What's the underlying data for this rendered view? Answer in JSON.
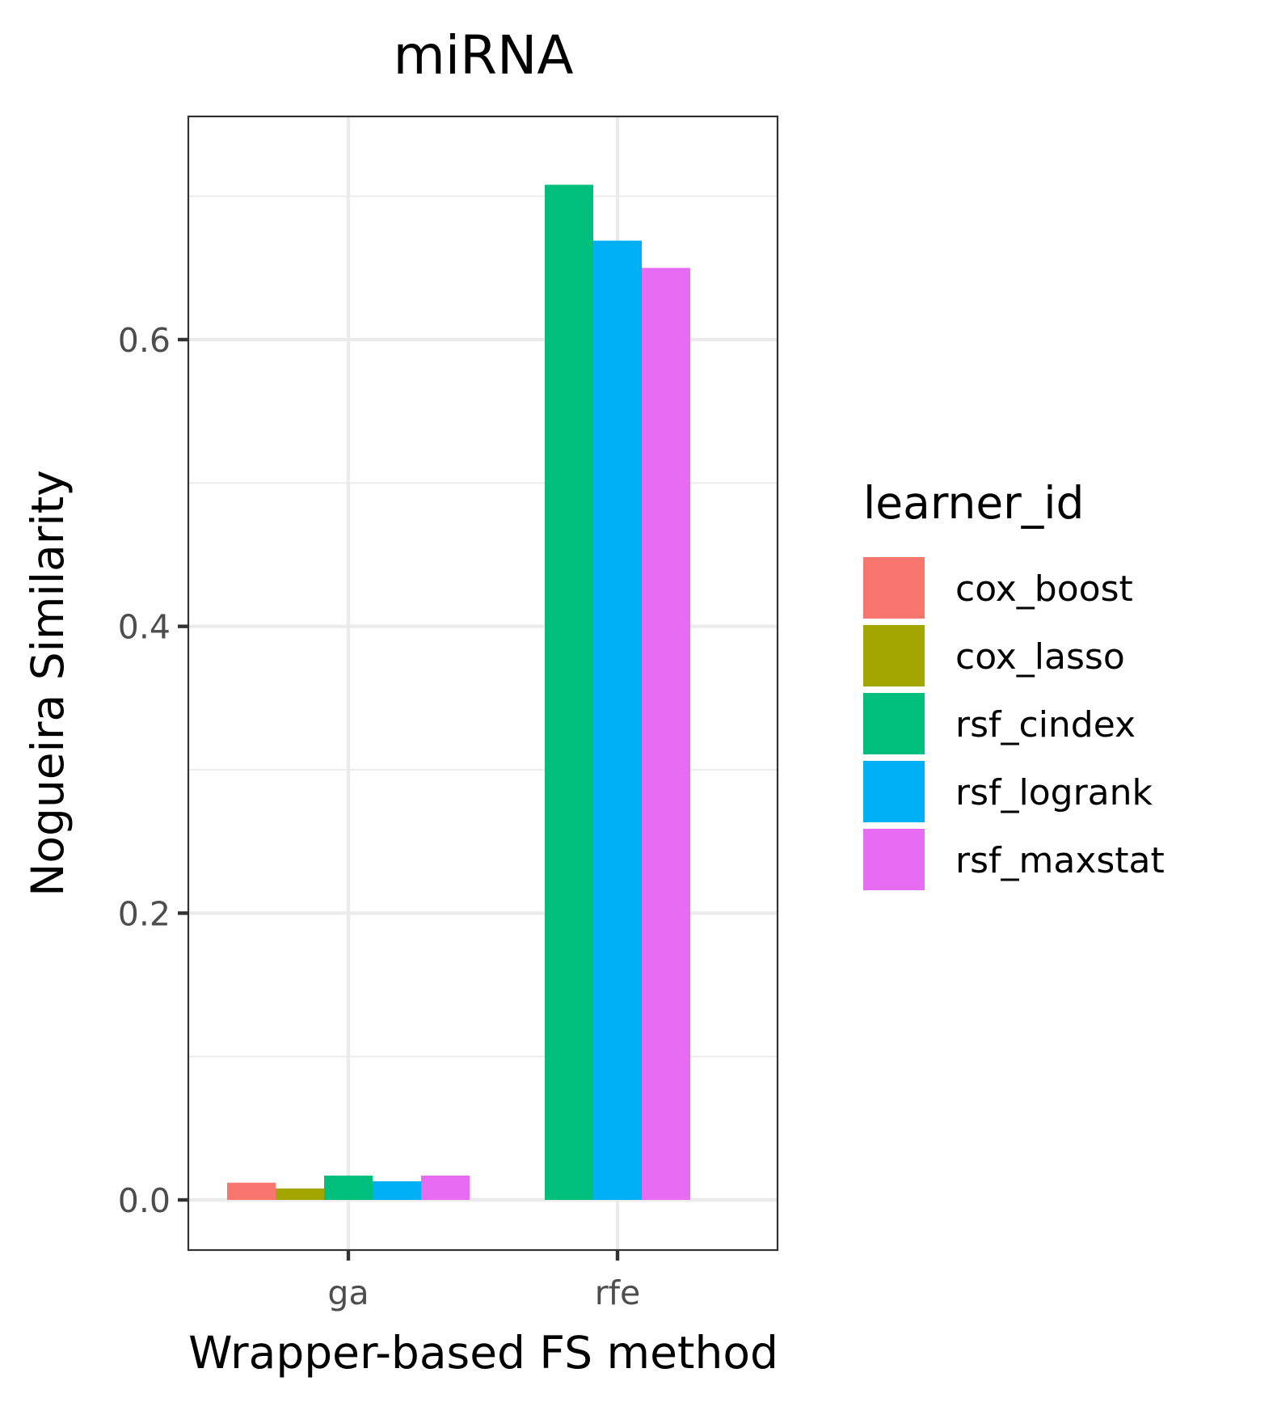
{
  "chart_data": {
    "type": "bar",
    "title": "miRNA",
    "xlabel": "Wrapper-based FS method",
    "ylabel": "Nogueira Similarity",
    "categories": [
      "ga",
      "rfe"
    ],
    "series": [
      {
        "name": "cox_boost",
        "color": "#F8766D",
        "values": [
          0.012,
          null
        ]
      },
      {
        "name": "cox_lasso",
        "color": "#A3A500",
        "values": [
          0.008,
          null
        ]
      },
      {
        "name": "rsf_cindex",
        "color": "#00BF7D",
        "values": [
          0.017,
          0.708
        ]
      },
      {
        "name": "rsf_logrank",
        "color": "#00B0F6",
        "values": [
          0.013,
          0.669
        ]
      },
      {
        "name": "rsf_maxstat",
        "color": "#E76BF3",
        "values": [
          0.017,
          0.65
        ]
      }
    ],
    "ylim": [
      -0.035,
      0.755
    ],
    "yticks": [
      0.0,
      0.2,
      0.4,
      0.6
    ],
    "ytick_labels": [
      "0.0",
      "0.2",
      "0.4",
      "0.6"
    ],
    "grid": true,
    "legend": {
      "title": "learner_id",
      "position": "right"
    },
    "background": "#ffffff",
    "grid_color": "#ebebeb",
    "panel_border_color": "#333333"
  }
}
